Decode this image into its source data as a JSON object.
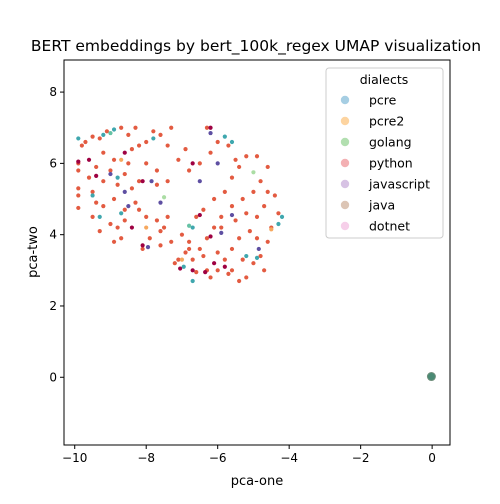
{
  "chart_data": {
    "type": "scatter",
    "title": "BERT embeddings by bert_100k_regex UMAP visualization",
    "xlabel": "pca-one",
    "ylabel": "pca-two",
    "xlim": [
      -10.3,
      0.5
    ],
    "ylim": [
      -1.9,
      8.9
    ],
    "xticks": [
      -10,
      -8,
      -6,
      -4,
      -2,
      0
    ],
    "yticks": [
      0,
      2,
      4,
      6,
      8
    ],
    "grid": false,
    "legend": {
      "title": "dialects",
      "placement": "top-right",
      "entries": [
        {
          "name": "pcre",
          "color": "#a6cee3"
        },
        {
          "name": "pcre2",
          "color": "#fdd4a0"
        },
        {
          "name": "golang",
          "color": "#b2dfb0"
        },
        {
          "name": "python",
          "color": "#f3b0b3"
        },
        {
          "name": "javascript",
          "color": "#d7c2e4"
        },
        {
          "name": "java",
          "color": "#dcc5b5"
        },
        {
          "name": "dotnet",
          "color": "#f6cfe9"
        }
      ]
    },
    "series": [
      {
        "color": "#e35b41",
        "points": [
          [
            -9.5,
            6.75
          ],
          [
            -9.3,
            6.7
          ],
          [
            -9.1,
            6.9
          ],
          [
            -9.7,
            6.6
          ],
          [
            -9.9,
            6.0
          ],
          [
            -9.9,
            5.8
          ],
          [
            -9.6,
            5.6
          ],
          [
            -9.4,
            5.9
          ],
          [
            -9.2,
            5.5
          ],
          [
            -9.0,
            5.8
          ],
          [
            -9.9,
            5.3
          ],
          [
            -9.9,
            5.1
          ],
          [
            -9.5,
            5.2
          ],
          [
            -9.4,
            4.9
          ],
          [
            -9.2,
            4.8
          ],
          [
            -9.9,
            4.75
          ],
          [
            -9.3,
            4.1
          ],
          [
            -9.0,
            4.3
          ],
          [
            -8.9,
            3.8
          ],
          [
            -8.7,
            3.9
          ],
          [
            -8.6,
            4.4
          ],
          [
            -8.9,
            5.0
          ],
          [
            -8.8,
            5.4
          ],
          [
            -8.6,
            5.7
          ],
          [
            -8.5,
            6.0
          ],
          [
            -8.4,
            6.4
          ],
          [
            -8.5,
            6.8
          ],
          [
            -8.7,
            7.0
          ],
          [
            -8.3,
            7.0
          ],
          [
            -8.2,
            6.5
          ],
          [
            -8.0,
            6.6
          ],
          [
            -7.8,
            6.9
          ],
          [
            -7.6,
            6.8
          ],
          [
            -7.4,
            6.5
          ],
          [
            -8.0,
            6.0
          ],
          [
            -7.7,
            5.8
          ],
          [
            -7.4,
            5.5
          ],
          [
            -7.7,
            5.4
          ],
          [
            -8.2,
            5.5
          ],
          [
            -8.4,
            5.3
          ],
          [
            -8.3,
            4.9
          ],
          [
            -8.6,
            4.7
          ],
          [
            -8.0,
            4.5
          ],
          [
            -7.7,
            4.4
          ],
          [
            -7.4,
            4.5
          ],
          [
            -7.6,
            4.1
          ],
          [
            -7.9,
            3.9
          ],
          [
            -7.6,
            3.7
          ],
          [
            -7.3,
            3.8
          ],
          [
            -7.0,
            4.0
          ],
          [
            -6.8,
            3.8
          ],
          [
            -6.9,
            3.5
          ],
          [
            -7.1,
            3.3
          ],
          [
            -6.7,
            3.3
          ],
          [
            -6.5,
            3.6
          ],
          [
            -6.3,
            3.9
          ],
          [
            -6.1,
            4.2
          ],
          [
            -5.9,
            4.5
          ],
          [
            -5.6,
            4.8
          ],
          [
            -5.3,
            5.0
          ],
          [
            -5.0,
            5.2
          ],
          [
            -4.8,
            5.5
          ],
          [
            -4.6,
            5.2
          ],
          [
            -4.7,
            4.8
          ],
          [
            -4.9,
            4.5
          ],
          [
            -5.1,
            4.1
          ],
          [
            -5.4,
            3.9
          ],
          [
            -5.6,
            3.6
          ],
          [
            -5.8,
            3.3
          ],
          [
            -6.0,
            3.0
          ],
          [
            -6.3,
            3.0
          ],
          [
            -6.6,
            2.95
          ],
          [
            -5.2,
            2.8
          ],
          [
            -5.0,
            3.2
          ],
          [
            -4.8,
            3.4
          ],
          [
            -4.6,
            3.8
          ],
          [
            -4.5,
            4.2
          ],
          [
            -4.3,
            4.6
          ],
          [
            -4.4,
            5.1
          ],
          [
            -4.6,
            5.9
          ],
          [
            -4.9,
            6.2
          ],
          [
            -5.2,
            6.2
          ],
          [
            -5.4,
            5.9
          ],
          [
            -5.6,
            5.6
          ],
          [
            -5.8,
            5.2
          ],
          [
            -6.1,
            5.0
          ],
          [
            -6.4,
            4.7
          ],
          [
            -6.6,
            4.5
          ],
          [
            -6.2,
            6.3
          ],
          [
            -6.5,
            6.0
          ],
          [
            -6.8,
            5.8
          ],
          [
            -7.1,
            6.1
          ],
          [
            -7.3,
            7.0
          ],
          [
            -6.9,
            6.4
          ],
          [
            -6.3,
            7.0
          ],
          [
            -6.0,
            6.6
          ],
          [
            -5.7,
            6.5
          ],
          [
            -5.5,
            6.1
          ],
          [
            -5.9,
            4.2
          ],
          [
            -5.5,
            4.4
          ],
          [
            -5.2,
            4.6
          ],
          [
            -4.9,
            3.9
          ],
          [
            -5.3,
            3.3
          ],
          [
            -5.6,
            3.0
          ],
          [
            -6.0,
            3.5
          ],
          [
            -6.4,
            3.4
          ],
          [
            -6.2,
            2.8
          ],
          [
            -5.7,
            2.9
          ],
          [
            -5.4,
            2.7
          ],
          [
            -4.7,
            3.0
          ],
          [
            -9.8,
            6.5
          ],
          [
            -9.2,
            6.3
          ],
          [
            -8.9,
            6.1
          ],
          [
            -9.5,
            4.5
          ],
          [
            -8.8,
            4.2
          ],
          [
            -8.2,
            4.7
          ],
          [
            -7.5,
            4.2
          ],
          [
            -8.1,
            3.6
          ],
          [
            -7.2,
            3.2
          ],
          [
            -6.8,
            3.6
          ]
        ]
      },
      {
        "color": "#9e0142",
        "points": [
          [
            -9.9,
            6.05
          ],
          [
            -9.6,
            6.1
          ],
          [
            -9.4,
            5.65
          ],
          [
            -8.6,
            6.3
          ],
          [
            -8.1,
            5.5
          ],
          [
            -8.4,
            4.2
          ],
          [
            -8.1,
            3.7
          ],
          [
            -6.7,
            6.0
          ],
          [
            -6.5,
            4.55
          ],
          [
            -6.2,
            7.0
          ],
          [
            -6.2,
            3.95
          ],
          [
            -6.1,
            3.2
          ],
          [
            -5.8,
            3.1
          ],
          [
            -6.35,
            2.95
          ],
          [
            -7.05,
            3.05
          ],
          [
            -6.7,
            3.0
          ]
        ]
      },
      {
        "color": "#3fa7ae",
        "points": [
          [
            -9.9,
            6.7
          ],
          [
            -9.2,
            6.8
          ],
          [
            -8.9,
            6.95
          ],
          [
            -9.5,
            5.1
          ],
          [
            -9.3,
            4.5
          ],
          [
            -8.7,
            4.6
          ],
          [
            -8.8,
            5.6
          ],
          [
            -7.8,
            6.7
          ],
          [
            -6.7,
            4.2
          ],
          [
            -6.7,
            2.7
          ],
          [
            -6.95,
            3.1
          ],
          [
            -5.8,
            6.75
          ],
          [
            -5.6,
            6.6
          ],
          [
            -5.2,
            3.4
          ],
          [
            -4.9,
            3.35
          ],
          [
            -4.2,
            4.5
          ],
          [
            -4.3,
            4.3
          ],
          [
            -0.02,
            0.02
          ]
        ]
      },
      {
        "color": "#5e4fa2",
        "points": [
          [
            -9.0,
            5.7
          ],
          [
            -8.6,
            5.2
          ],
          [
            -8.5,
            4.8
          ],
          [
            -7.85,
            5.5
          ],
          [
            -7.6,
            4.9
          ],
          [
            -6.2,
            6.85
          ],
          [
            -6.0,
            6.0
          ],
          [
            -5.9,
            4.05
          ],
          [
            -5.6,
            4.55
          ],
          [
            -4.85,
            3.6
          ],
          [
            -6.5,
            5.5
          ],
          [
            -7.95,
            3.65
          ]
        ]
      },
      {
        "color": "#f6a85e",
        "points": [
          [
            -8.7,
            6.1
          ],
          [
            -8.0,
            4.2
          ],
          [
            -7.0,
            3.3
          ],
          [
            -4.5,
            4.15
          ]
        ]
      },
      {
        "color": "#abdda4",
        "points": [
          [
            -7.5,
            5.05
          ],
          [
            -5.0,
            5.75
          ]
        ]
      },
      {
        "color": "#66c2a5",
        "points": [
          [
            -9.0,
            6.85
          ],
          [
            -6.8,
            4.25
          ]
        ]
      }
    ]
  }
}
